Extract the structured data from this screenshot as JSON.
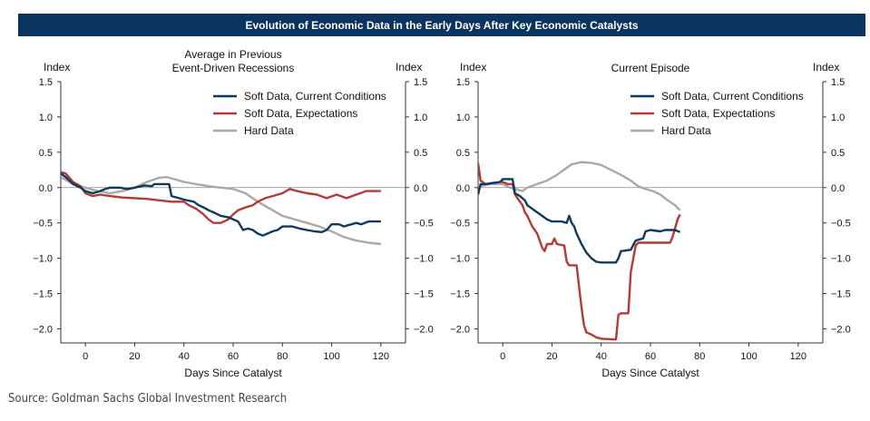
{
  "banner_title": "Evolution of Economic Data in the Early Days After Key Economic Catalysts",
  "source": "Source: Goldman Sachs Global Investment Research",
  "colors": {
    "soft_current": "#0f3a5f",
    "soft_expect": "#b43a36",
    "hard": "#a9a9a9",
    "banner": "#0b3461"
  },
  "chart_data": [
    {
      "type": "line",
      "title": "Average in Previous Event-Driven Recessions",
      "title_lines": [
        "Average in Previous",
        "Event-Driven Recessions"
      ],
      "xlabel": "Days Since Catalyst",
      "ylabel_left": "Index",
      "ylabel_right": "Index",
      "xlim": [
        -10,
        130
      ],
      "ylim": [
        -2.2,
        1.5
      ],
      "xticks": [
        0,
        20,
        40,
        60,
        80,
        100,
        120
      ],
      "yticks": [
        1.5,
        1.0,
        0.5,
        0.0,
        -0.5,
        -1.0,
        -1.5,
        -2.0
      ],
      "ytick_labels": [
        "1.5",
        "1.0",
        "0.5",
        "0.0",
        "−0.5",
        "−1.0",
        "−1.5",
        "−2.0"
      ],
      "legend_position": "top-right",
      "series": [
        {
          "name": "Soft Data, Current Conditions",
          "color": "#0f3a5f",
          "points": [
            [
              -10,
              0.2
            ],
            [
              -8,
              0.15
            ],
            [
              -5,
              0.05
            ],
            [
              -2,
              0.0
            ],
            [
              0,
              -0.05
            ],
            [
              3,
              -0.08
            ],
            [
              6,
              -0.05
            ],
            [
              8,
              -0.02
            ],
            [
              10,
              0.0
            ],
            [
              14,
              0.0
            ],
            [
              17,
              -0.02
            ],
            [
              20,
              0.0
            ],
            [
              24,
              0.03
            ],
            [
              27,
              0.02
            ],
            [
              28,
              0.05
            ],
            [
              32,
              0.05
            ],
            [
              34,
              0.05
            ],
            [
              35,
              -0.12
            ],
            [
              38,
              -0.15
            ],
            [
              40,
              -0.17
            ],
            [
              44,
              -0.2
            ],
            [
              46,
              -0.25
            ],
            [
              48,
              -0.28
            ],
            [
              50,
              -0.32
            ],
            [
              52,
              -0.35
            ],
            [
              55,
              -0.4
            ],
            [
              58,
              -0.42
            ],
            [
              62,
              -0.48
            ],
            [
              64,
              -0.6
            ],
            [
              66,
              -0.58
            ],
            [
              68,
              -0.6
            ],
            [
              70,
              -0.65
            ],
            [
              72,
              -0.68
            ],
            [
              74,
              -0.65
            ],
            [
              76,
              -0.62
            ],
            [
              78,
              -0.6
            ],
            [
              80,
              -0.55
            ],
            [
              84,
              -0.55
            ],
            [
              87,
              -0.58
            ],
            [
              90,
              -0.6
            ],
            [
              93,
              -0.62
            ],
            [
              96,
              -0.63
            ],
            [
              98,
              -0.6
            ],
            [
              100,
              -0.52
            ],
            [
              103,
              -0.52
            ],
            [
              105,
              -0.55
            ],
            [
              108,
              -0.52
            ],
            [
              110,
              -0.5
            ],
            [
              112,
              -0.52
            ],
            [
              115,
              -0.48
            ],
            [
              120,
              -0.48
            ]
          ]
        },
        {
          "name": "Soft Data, Expectations",
          "color": "#b43a36",
          "points": [
            [
              -10,
              0.22
            ],
            [
              -8,
              0.2
            ],
            [
              -5,
              0.08
            ],
            [
              -2,
              0.02
            ],
            [
              0,
              -0.08
            ],
            [
              3,
              -0.12
            ],
            [
              6,
              -0.1
            ],
            [
              10,
              -0.12
            ],
            [
              15,
              -0.14
            ],
            [
              20,
              -0.15
            ],
            [
              25,
              -0.16
            ],
            [
              30,
              -0.18
            ],
            [
              35,
              -0.2
            ],
            [
              40,
              -0.2
            ],
            [
              42,
              -0.25
            ],
            [
              45,
              -0.3
            ],
            [
              48,
              -0.38
            ],
            [
              50,
              -0.45
            ],
            [
              52,
              -0.5
            ],
            [
              55,
              -0.5
            ],
            [
              58,
              -0.45
            ],
            [
              60,
              -0.38
            ],
            [
              62,
              -0.32
            ],
            [
              65,
              -0.28
            ],
            [
              68,
              -0.25
            ],
            [
              70,
              -0.2
            ],
            [
              73,
              -0.15
            ],
            [
              76,
              -0.12
            ],
            [
              80,
              -0.08
            ],
            [
              83,
              -0.02
            ],
            [
              86,
              -0.05
            ],
            [
              90,
              -0.08
            ],
            [
              94,
              -0.1
            ],
            [
              98,
              -0.15
            ],
            [
              102,
              -0.1
            ],
            [
              106,
              -0.15
            ],
            [
              110,
              -0.1
            ],
            [
              114,
              -0.05
            ],
            [
              120,
              -0.05
            ]
          ]
        },
        {
          "name": "Hard Data",
          "color": "#a9a9a9",
          "points": [
            [
              -10,
              0.15
            ],
            [
              -5,
              0.05
            ],
            [
              0,
              0.0
            ],
            [
              5,
              -0.05
            ],
            [
              10,
              -0.08
            ],
            [
              15,
              -0.05
            ],
            [
              20,
              0.0
            ],
            [
              25,
              0.08
            ],
            [
              30,
              0.14
            ],
            [
              33,
              0.15
            ],
            [
              36,
              0.12
            ],
            [
              40,
              0.08
            ],
            [
              45,
              0.05
            ],
            [
              50,
              0.02
            ],
            [
              55,
              0.0
            ],
            [
              60,
              -0.02
            ],
            [
              65,
              -0.08
            ],
            [
              70,
              -0.2
            ],
            [
              75,
              -0.3
            ],
            [
              80,
              -0.4
            ],
            [
              85,
              -0.45
            ],
            [
              90,
              -0.5
            ],
            [
              95,
              -0.55
            ],
            [
              100,
              -0.62
            ],
            [
              105,
              -0.7
            ],
            [
              110,
              -0.75
            ],
            [
              115,
              -0.78
            ],
            [
              120,
              -0.8
            ]
          ]
        }
      ]
    },
    {
      "type": "line",
      "title": "Current Episode",
      "title_lines": [
        "Current Episode"
      ],
      "xlabel": "Days Since Catalyst",
      "ylabel_left": "Index",
      "ylabel_right": "Index",
      "xlim": [
        -10,
        130
      ],
      "ylim": [
        -2.2,
        1.5
      ],
      "xticks": [
        0,
        20,
        40,
        60,
        80,
        100,
        120
      ],
      "yticks": [
        1.5,
        1.0,
        0.5,
        0.0,
        -0.5,
        -1.0,
        -1.5,
        -2.0
      ],
      "ytick_labels": [
        "1.5",
        "1.0",
        "0.5",
        "0.0",
        "−0.5",
        "−1.0",
        "−1.5",
        "−2.0"
      ],
      "legend_position": "top-right",
      "series": [
        {
          "name": "Soft Data, Current Conditions",
          "color": "#0f3a5f",
          "points": [
            [
              -10,
              -0.1
            ],
            [
              -9,
              0.05
            ],
            [
              -7,
              0.05
            ],
            [
              -5,
              0.06
            ],
            [
              -3,
              0.07
            ],
            [
              -1,
              0.08
            ],
            [
              0,
              0.12
            ],
            [
              2,
              0.12
            ],
            [
              4,
              0.12
            ],
            [
              5,
              -0.08
            ],
            [
              7,
              -0.12
            ],
            [
              9,
              -0.18
            ],
            [
              10,
              -0.25
            ],
            [
              12,
              -0.3
            ],
            [
              14,
              -0.35
            ],
            [
              16,
              -0.4
            ],
            [
              18,
              -0.45
            ],
            [
              20,
              -0.48
            ],
            [
              24,
              -0.48
            ],
            [
              26,
              -0.5
            ],
            [
              27,
              -0.4
            ],
            [
              28,
              -0.5
            ],
            [
              29,
              -0.55
            ],
            [
              30,
              -0.65
            ],
            [
              32,
              -0.8
            ],
            [
              34,
              -0.92
            ],
            [
              36,
              -1.0
            ],
            [
              38,
              -1.05
            ],
            [
              40,
              -1.06
            ],
            [
              44,
              -1.06
            ],
            [
              46,
              -1.06
            ],
            [
              47,
              -1.0
            ],
            [
              48,
              -0.9
            ],
            [
              52,
              -0.88
            ],
            [
              54,
              -0.75
            ],
            [
              57,
              -0.72
            ],
            [
              58,
              -0.62
            ],
            [
              60,
              -0.6
            ],
            [
              64,
              -0.62
            ],
            [
              66,
              -0.6
            ],
            [
              70,
              -0.6
            ],
            [
              72,
              -0.63
            ]
          ]
        },
        {
          "name": "Soft Data, Expectations",
          "color": "#b43a36",
          "points": [
            [
              -10,
              0.35
            ],
            [
              -9,
              0.1
            ],
            [
              -7,
              0.05
            ],
            [
              -5,
              0.06
            ],
            [
              -3,
              0.07
            ],
            [
              -1,
              0.08
            ],
            [
              0,
              0.08
            ],
            [
              2,
              0.05
            ],
            [
              4,
              0.05
            ],
            [
              5,
              -0.1
            ],
            [
              6,
              -0.15
            ],
            [
              8,
              -0.25
            ],
            [
              9,
              -0.35
            ],
            [
              10,
              -0.4
            ],
            [
              12,
              -0.55
            ],
            [
              14,
              -0.65
            ],
            [
              15,
              -0.75
            ],
            [
              16,
              -0.85
            ],
            [
              17,
              -0.9
            ],
            [
              18,
              -0.8
            ],
            [
              20,
              -0.8
            ],
            [
              21,
              -0.72
            ],
            [
              22,
              -0.8
            ],
            [
              25,
              -0.82
            ],
            [
              26,
              -1.05
            ],
            [
              27,
              -1.1
            ],
            [
              30,
              -1.1
            ],
            [
              31,
              -1.4
            ],
            [
              32,
              -1.7
            ],
            [
              33,
              -1.95
            ],
            [
              34,
              -2.05
            ],
            [
              36,
              -2.08
            ],
            [
              38,
              -2.12
            ],
            [
              40,
              -2.14
            ],
            [
              45,
              -2.15
            ],
            [
              46,
              -2.15
            ],
            [
              47,
              -1.8
            ],
            [
              48,
              -1.78
            ],
            [
              51,
              -1.78
            ],
            [
              52,
              -1.2
            ],
            [
              54,
              -0.82
            ],
            [
              55,
              -0.78
            ],
            [
              60,
              -0.78
            ],
            [
              62,
              -0.78
            ],
            [
              66,
              -0.78
            ],
            [
              68,
              -0.78
            ],
            [
              69,
              -0.7
            ],
            [
              71,
              -0.45
            ],
            [
              72,
              -0.38
            ]
          ]
        },
        {
          "name": "Hard Data",
          "color": "#a9a9a9",
          "points": [
            [
              -10,
              0.0
            ],
            [
              -8,
              0.03
            ],
            [
              -5,
              0.05
            ],
            [
              0,
              0.05
            ],
            [
              3,
              0.0
            ],
            [
              5,
              -0.02
            ],
            [
              8,
              -0.05
            ],
            [
              10,
              0.0
            ],
            [
              14,
              0.05
            ],
            [
              18,
              0.1
            ],
            [
              22,
              0.18
            ],
            [
              26,
              0.28
            ],
            [
              28,
              0.33
            ],
            [
              32,
              0.36
            ],
            [
              36,
              0.35
            ],
            [
              40,
              0.32
            ],
            [
              44,
              0.25
            ],
            [
              48,
              0.18
            ],
            [
              52,
              0.1
            ],
            [
              55,
              0.02
            ],
            [
              58,
              -0.02
            ],
            [
              61,
              -0.05
            ],
            [
              64,
              -0.1
            ],
            [
              67,
              -0.18
            ],
            [
              70,
              -0.25
            ],
            [
              72,
              -0.32
            ]
          ]
        }
      ]
    }
  ]
}
